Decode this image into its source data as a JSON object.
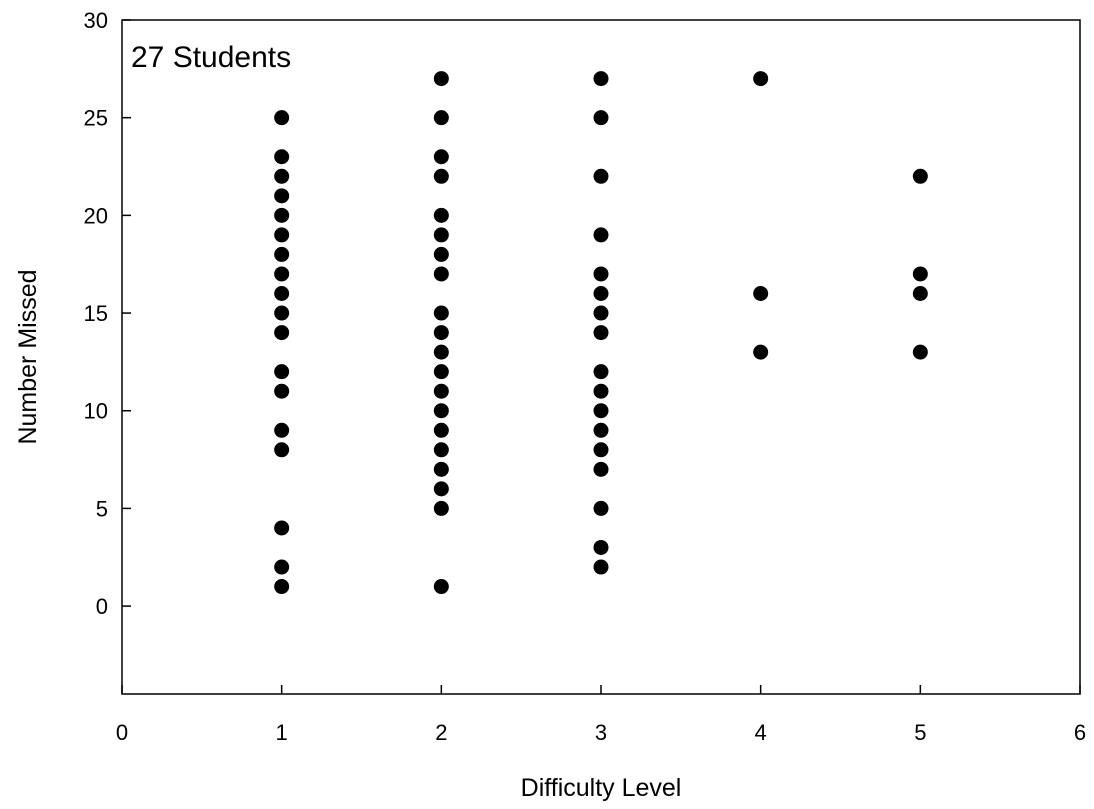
{
  "chart_data": {
    "type": "scatter",
    "xlabel": "Difficulty Level",
    "ylabel": "Number Missed",
    "annotation": "27 Students",
    "xlim": [
      0,
      6
    ],
    "ylim": [
      -4.5,
      30
    ],
    "xticks": [
      0,
      1,
      2,
      3,
      4,
      5,
      6
    ],
    "yticks": [
      0,
      5,
      10,
      15,
      20,
      25,
      30
    ],
    "grid": false,
    "legend": "none",
    "marker_color": "#000000",
    "series": [
      {
        "points": [
          [
            1,
            25
          ],
          [
            1,
            23
          ],
          [
            1,
            22
          ],
          [
            1,
            21
          ],
          [
            1,
            20
          ],
          [
            1,
            19
          ],
          [
            1,
            18
          ],
          [
            1,
            17
          ],
          [
            1,
            16
          ],
          [
            1,
            15
          ],
          [
            1,
            14
          ],
          [
            1,
            12
          ],
          [
            1,
            11
          ],
          [
            1,
            9
          ],
          [
            1,
            8
          ],
          [
            1,
            4
          ],
          [
            1,
            2
          ],
          [
            1,
            1
          ],
          [
            2,
            27
          ],
          [
            2,
            25
          ],
          [
            2,
            23
          ],
          [
            2,
            22
          ],
          [
            2,
            20
          ],
          [
            2,
            19
          ],
          [
            2,
            18
          ],
          [
            2,
            17
          ],
          [
            2,
            15
          ],
          [
            2,
            14
          ],
          [
            2,
            13
          ],
          [
            2,
            12
          ],
          [
            2,
            11
          ],
          [
            2,
            10
          ],
          [
            2,
            9
          ],
          [
            2,
            8
          ],
          [
            2,
            7
          ],
          [
            2,
            6
          ],
          [
            2,
            5
          ],
          [
            2,
            1
          ],
          [
            3,
            27
          ],
          [
            3,
            25
          ],
          [
            3,
            22
          ],
          [
            3,
            19
          ],
          [
            3,
            17
          ],
          [
            3,
            16
          ],
          [
            3,
            15
          ],
          [
            3,
            14
          ],
          [
            3,
            12
          ],
          [
            3,
            11
          ],
          [
            3,
            10
          ],
          [
            3,
            9
          ],
          [
            3,
            8
          ],
          [
            3,
            7
          ],
          [
            3,
            5
          ],
          [
            3,
            3
          ],
          [
            3,
            2
          ],
          [
            4,
            27
          ],
          [
            4,
            16
          ],
          [
            4,
            13
          ],
          [
            5,
            22
          ],
          [
            5,
            17
          ],
          [
            5,
            16
          ],
          [
            5,
            13
          ]
        ]
      }
    ]
  }
}
